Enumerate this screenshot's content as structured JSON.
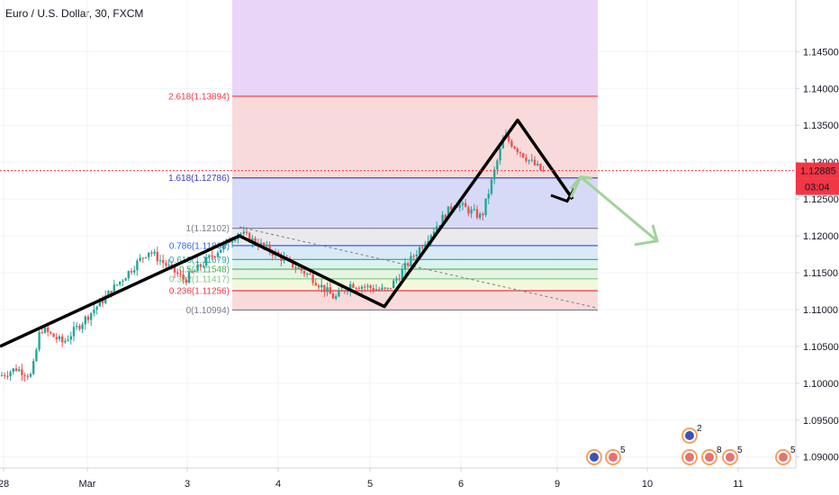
{
  "chart_title": "Euro / U.S. Dollar, 30, FXCM",
  "price_badge": {
    "value": "1.12885",
    "countdown": "03:04",
    "color": "#f23645"
  },
  "chart_data": {
    "type": "candlestick",
    "title": "Euro / U.S. Dollar, 30, FXCM",
    "ylim": [
      1.0885,
      1.152
    ],
    "y_ticks": [
      "1.14500",
      "1.14000",
      "1.13500",
      "1.13000",
      "1.12500",
      "1.12000",
      "1.11500",
      "1.11000",
      "1.10500",
      "1.10000",
      "1.09500",
      "1.09000"
    ],
    "x_ticks": [
      "28",
      "Mar",
      "3",
      "4",
      "5",
      "6",
      "9",
      "10",
      "11"
    ],
    "last_price": 1.12885,
    "series": [
      {
        "kind": "price-path",
        "points": [
          {
            "x": "28",
            "y": 1.101
          },
          {
            "x": "28",
            "y": 1.102
          },
          {
            "x": "Mar",
            "y": 1.101
          },
          {
            "x": "Mar",
            "y": 1.1075
          },
          {
            "x": "Mar",
            "y": 1.1055
          },
          {
            "x": "3",
            "y": 1.118
          },
          {
            "x": "3",
            "y": 1.114
          },
          {
            "x": "3",
            "y": 1.1205
          },
          {
            "x": "4",
            "y": 1.118
          },
          {
            "x": "4",
            "y": 1.1145
          },
          {
            "x": "5",
            "y": 1.1115
          },
          {
            "x": "5",
            "y": 1.1135
          },
          {
            "x": "5",
            "y": 1.1125
          },
          {
            "x": "6",
            "y": 1.119
          },
          {
            "x": "6",
            "y": 1.1245
          },
          {
            "x": "6",
            "y": 1.1225
          },
          {
            "x": "6",
            "y": 1.1335
          },
          {
            "x": "9",
            "y": 1.13
          },
          {
            "x": "9",
            "y": 1.1285
          }
        ]
      }
    ],
    "fibonacci": {
      "levels": [
        {
          "label": "2.618(1.13894)",
          "ratio": 2.618,
          "price": 1.13894,
          "color": "#f23645"
        },
        {
          "label": "1.618(1.12786)",
          "ratio": 1.618,
          "price": 1.12786,
          "color": "#3d3dbb"
        },
        {
          "label": "1(1.12102)",
          "ratio": 1,
          "price": 1.12102,
          "color": "#787b86"
        },
        {
          "label": "0.786(1.11868)",
          "ratio": 0.786,
          "price": 1.11868,
          "color": "#2962ff"
        },
        {
          "label": "0.618(1.11679)",
          "ratio": 0.618,
          "price": 1.11679,
          "color": "#26a69a"
        },
        {
          "label": "0.5(1.11548)",
          "ratio": 0.5,
          "price": 1.11548,
          "color": "#4caf50"
        },
        {
          "label": "0.382(1.11417)",
          "ratio": 0.382,
          "price": 1.11417,
          "color": "#81c784"
        },
        {
          "label": "0.236(1.11256)",
          "ratio": 0.236,
          "price": 1.11256,
          "color": "#f23645"
        },
        {
          "label": "0(1.10994)",
          "ratio": 0,
          "price": 1.10994,
          "color": "#787b86"
        }
      ],
      "zone_colors": [
        "#e9d5f7",
        "#f8d3d3",
        "#d0d3f5",
        "#e6e6ea",
        "#d3e5f5",
        "#d3f1ec",
        "#e0f2dc",
        "#eef7d6",
        "#f8d3d3"
      ]
    },
    "drawings": {
      "trend_line_color": "#000000",
      "projection_arrow_color": "#9fd39a",
      "dashed_trend_color": "#787b86"
    },
    "event_markers": [
      {
        "label": "3"
      },
      {
        "label": "5"
      },
      {
        "label": "2"
      },
      {
        "label": "22"
      },
      {
        "label": "8"
      },
      {
        "label": "5"
      }
    ]
  }
}
